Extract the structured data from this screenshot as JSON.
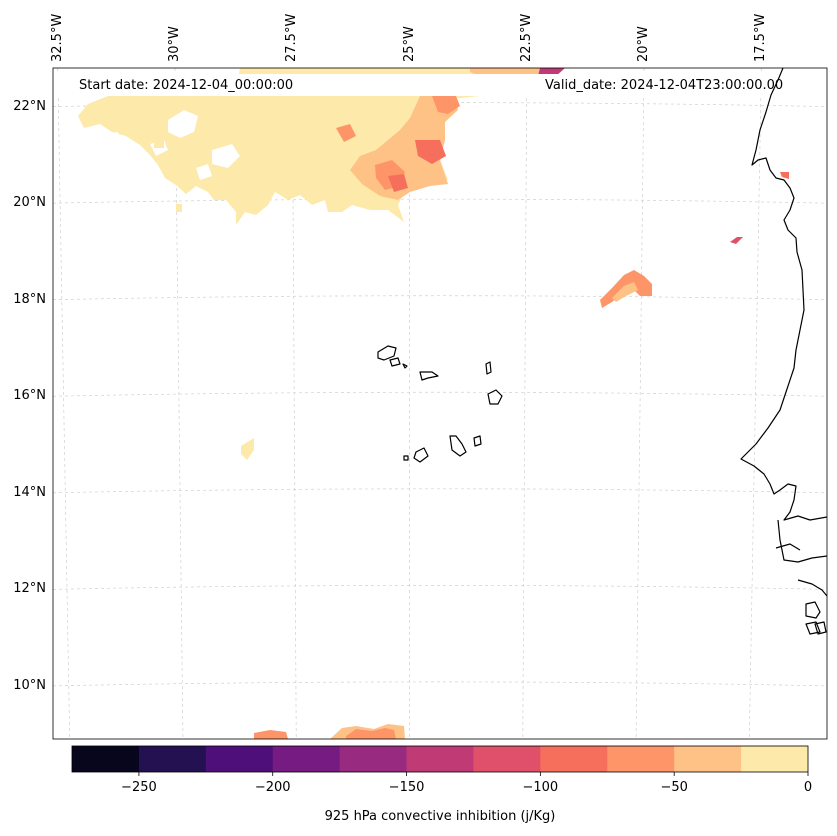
{
  "map": {
    "extent": {
      "lon_min": -32.6,
      "lon_max": -16.1,
      "lat_min": 8.9,
      "lat_max": 22.8
    },
    "lon_ticks": [
      {
        "value": -32.5,
        "label": "32.5°W"
      },
      {
        "value": -30,
        "label": "30°W"
      },
      {
        "value": -27.5,
        "label": "27.5°W"
      },
      {
        "value": -25,
        "label": "25°W"
      },
      {
        "value": -22.5,
        "label": "22.5°W"
      },
      {
        "value": -20,
        "label": "20°W"
      },
      {
        "value": -17.5,
        "label": "17.5°W"
      }
    ],
    "lat_ticks": [
      {
        "value": 22,
        "label": "22°N"
      },
      {
        "value": 20,
        "label": "20°N"
      },
      {
        "value": 18,
        "label": "18°N"
      },
      {
        "value": 16,
        "label": "16°N"
      },
      {
        "value": 14,
        "label": "14°N"
      },
      {
        "value": 12,
        "label": "12°N"
      },
      {
        "value": 10,
        "label": "10°N"
      }
    ]
  },
  "annotations": {
    "start_date": "Start date: 2024-12-04_00:00:00",
    "valid_date": "Valid_date: 2024-12-04T23:00:00.00"
  },
  "colorbar": {
    "label": "925 hPa convective inhibition (j/Kg)",
    "vmin": -275,
    "vmax": 0,
    "ticks": [
      {
        "value": -250,
        "label": "−250"
      },
      {
        "value": -200,
        "label": "−200"
      },
      {
        "value": -150,
        "label": "−150"
      },
      {
        "value": -100,
        "label": "−100"
      },
      {
        "value": -50,
        "label": "−50"
      },
      {
        "value": 0,
        "label": "0"
      }
    ],
    "bins": [
      {
        "from": -275,
        "to": -250,
        "color": "#07061c"
      },
      {
        "from": -250,
        "to": -225,
        "color": "#231151"
      },
      {
        "from": -225,
        "to": -200,
        "color": "#4f0f7b"
      },
      {
        "from": -200,
        "to": -175,
        "color": "#751b81"
      },
      {
        "from": -175,
        "to": -150,
        "color": "#982a7f"
      },
      {
        "from": -150,
        "to": -125,
        "color": "#c03a76"
      },
      {
        "from": -125,
        "to": -100,
        "color": "#e1506b"
      },
      {
        "from": -100,
        "to": -75,
        "color": "#f56f5c"
      },
      {
        "from": -75,
        "to": -50,
        "color": "#fd9568"
      },
      {
        "from": -50,
        "to": -25,
        "color": "#fec287"
      },
      {
        "from": -25,
        "to": 0,
        "color": "#fde9a9"
      }
    ]
  }
}
